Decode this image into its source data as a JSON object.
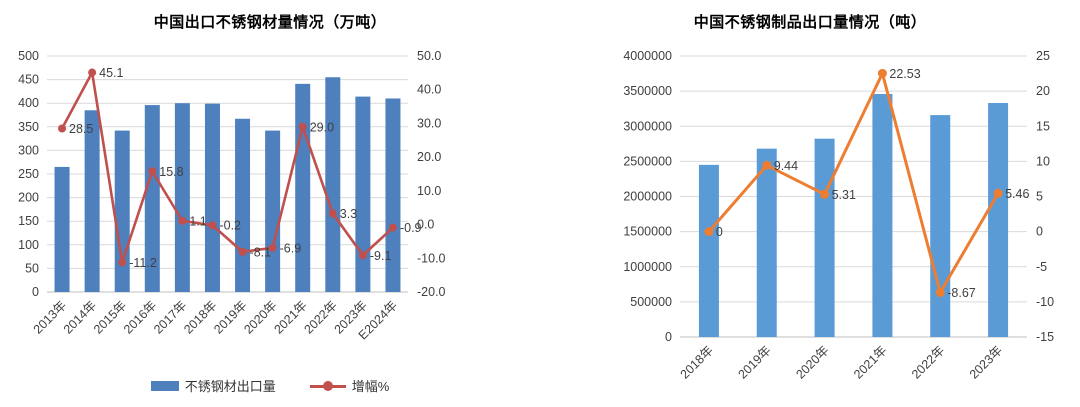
{
  "page": {
    "background": "#ffffff"
  },
  "chart_data": [
    {
      "type": "bar+line",
      "title": "中国出口不锈钢材量情况（万吨）",
      "categories": [
        "2013年",
        "2014年",
        "2015年",
        "2016年",
        "2017年",
        "2018年",
        "2019年",
        "2020年",
        "2021年",
        "2022年",
        "2023年",
        "E2024年"
      ],
      "series": [
        {
          "name": "不锈钢材出口量",
          "type": "bar",
          "axis": "left",
          "color": "#4E80BE",
          "values": [
            265,
            385,
            342,
            396,
            400,
            399,
            367,
            342,
            441,
            455,
            414,
            410
          ]
        },
        {
          "name": "增幅%",
          "type": "line",
          "axis": "right",
          "color": "#C0504D",
          "values": [
            28.5,
            45.1,
            -11.2,
            15.8,
            1.1,
            -0.2,
            -8.1,
            -6.9,
            29.0,
            3.3,
            -9.1,
            -0.9
          ],
          "labels": [
            "28.5",
            "45.1",
            "-11.2",
            "15.8",
            "1.1",
            "-0.2",
            "-8.1",
            "-6.9",
            "29.0",
            "3.3",
            "-9.1",
            "-0.9"
          ]
        }
      ],
      "left_axis": {
        "min": 0,
        "max": 500,
        "step": 50,
        "decimals": 0,
        "ticks": [
          "0",
          "50",
          "100",
          "150",
          "200",
          "250",
          "300",
          "350",
          "400",
          "450",
          "500"
        ]
      },
      "right_axis": {
        "min": -20,
        "max": 50,
        "step": 10,
        "decimals": 1,
        "ticks": [
          "-20.0",
          "-10.0",
          "0.0",
          "10.0",
          "20.0",
          "30.0",
          "40.0",
          "50.0"
        ]
      },
      "grid": true,
      "legend_position": "bottom",
      "show_legend": true
    },
    {
      "type": "bar+line",
      "title": "中国不锈钢制品出口量情况（吨）",
      "categories": [
        "2018年",
        "2019年",
        "2020年",
        "2021年",
        "2022年",
        "2023年"
      ],
      "series": [
        {
          "type": "bar",
          "axis": "left",
          "color": "#5B9BD5",
          "values": [
            2450000,
            2681000,
            2823000,
            3459000,
            3159000,
            3331000
          ]
        },
        {
          "type": "line",
          "axis": "right",
          "color": "#ED7D31",
          "values": [
            0,
            9.44,
            5.31,
            22.53,
            -8.67,
            5.46
          ],
          "labels": [
            "0",
            "9.44",
            "5.31",
            "22.53",
            "-8.67",
            "5.46"
          ]
        }
      ],
      "left_axis": {
        "min": 0,
        "max": 4000000,
        "step": 500000,
        "decimals": 0,
        "ticks": [
          "0",
          "500000",
          "1000000",
          "1500000",
          "2000000",
          "2500000",
          "3000000",
          "3500000",
          "4000000"
        ]
      },
      "right_axis": {
        "min": -15,
        "max": 25,
        "step": 5,
        "decimals": 0,
        "ticks": [
          "-15",
          "-10",
          "-5",
          "0",
          "5",
          "10",
          "15",
          "20",
          "25"
        ]
      },
      "grid": true,
      "legend_position": "none",
      "show_legend": false
    }
  ],
  "colors": {
    "grid": "#D9D9D9",
    "axis_line": "#BFBFBF",
    "axis_text": "#404040",
    "bar_left_chart": "#4E80BE",
    "line_left_chart": "#C0504D",
    "bar_right_chart": "#5B9BD5",
    "line_right_chart": "#ED7D31"
  }
}
